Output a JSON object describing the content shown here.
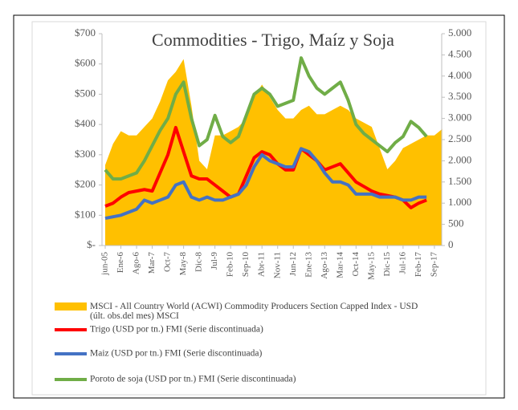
{
  "chart_data": {
    "type": "line",
    "title": "Commodities - Trigo, Maíz y Soja",
    "categories": [
      "jun-05",
      null,
      "Ene-6",
      null,
      "Ago-6",
      null,
      "Mar-7",
      null,
      "Oct-7",
      null,
      "May-8",
      null,
      "Dic-8",
      null,
      "Jul-9",
      null,
      "Feb-10",
      null,
      "Sep-10",
      null,
      "Abr-11",
      null,
      "Nov-11",
      null,
      "Jun-12",
      null,
      "Ene-13",
      null,
      "Ago-13",
      null,
      "Mar-14",
      null,
      "Oct-14",
      null,
      "May-15",
      null,
      "Dic-15",
      null,
      "Jul-16",
      null,
      "Feb-17",
      null,
      "Sep-17",
      null
    ],
    "series": [
      {
        "name": "MSCI - All Country World (ACWI) Commodity Producers Section Capped Index - USD (últ. obs.del mes) MSCI",
        "color": "#ffc000",
        "style": "area",
        "axis": "y2",
        "values": [
          1900,
          2400,
          2700,
          2600,
          2600,
          2800,
          3000,
          3400,
          3900,
          4100,
          4400,
          3300,
          2000,
          1800,
          2600,
          2600,
          2700,
          2800,
          3000,
          3500,
          3800,
          3500,
          3200,
          3000,
          3000,
          3200,
          3300,
          3100,
          3100,
          3200,
          3300,
          3200,
          3000,
          2900,
          2800,
          2300,
          1800,
          2000,
          2300,
          2400,
          2500,
          2600,
          2600,
          2750
        ]
      },
      {
        "name": "Trigo (USD por tn.) FMI (Serie discontinuada)",
        "color": "#ff0000",
        "values": [
          130,
          140,
          160,
          175,
          180,
          185,
          180,
          240,
          300,
          390,
          310,
          230,
          220,
          220,
          200,
          180,
          160,
          170,
          230,
          290,
          310,
          300,
          270,
          250,
          250,
          320,
          300,
          280,
          250,
          260,
          270,
          240,
          210,
          195,
          180,
          170,
          165,
          160,
          150,
          125,
          140,
          150,
          null,
          null
        ]
      },
      {
        "name": "Maiz (USD por tn.) FMI (Serie discontinuada)",
        "color": "#4472c4",
        "values": [
          90,
          95,
          100,
          110,
          120,
          150,
          140,
          150,
          160,
          200,
          210,
          160,
          150,
          160,
          150,
          150,
          160,
          170,
          200,
          260,
          300,
          280,
          270,
          260,
          260,
          320,
          310,
          280,
          240,
          210,
          210,
          200,
          170,
          170,
          170,
          160,
          160,
          160,
          150,
          150,
          160,
          160,
          null,
          null
        ]
      },
      {
        "name": "Poroto de soja (USD por tn.) FMI (Serie discontinuada)",
        "color": "#70ad47",
        "values": [
          250,
          220,
          220,
          230,
          240,
          280,
          330,
          380,
          420,
          500,
          540,
          420,
          330,
          350,
          430,
          360,
          340,
          360,
          430,
          500,
          520,
          500,
          460,
          470,
          480,
          620,
          560,
          520,
          500,
          520,
          540,
          480,
          400,
          370,
          350,
          330,
          310,
          340,
          360,
          410,
          390,
          360,
          null,
          null
        ]
      }
    ],
    "ylim": [
      0,
      700
    ],
    "yticks": [
      {
        "value": 0,
        "label": "$-"
      },
      {
        "value": 100,
        "label": "$100"
      },
      {
        "value": 200,
        "label": "$200"
      },
      {
        "value": 300,
        "label": "$300"
      },
      {
        "value": 400,
        "label": "$400"
      },
      {
        "value": 500,
        "label": "$500"
      },
      {
        "value": 600,
        "label": "$600"
      },
      {
        "value": 700,
        "label": "$700"
      }
    ],
    "y2lim": [
      0,
      5000
    ],
    "y2ticks": [
      0,
      {
        "value": 500,
        "label": "500"
      },
      {
        "value": 1000,
        "label": "1.000"
      },
      {
        "value": 1500,
        "label": "1.500"
      },
      {
        "value": 2000,
        "label": "2.000"
      },
      {
        "value": 2500,
        "label": "2.500"
      },
      {
        "value": 3000,
        "label": "3.000"
      },
      {
        "value": 3500,
        "label": "3.500"
      },
      {
        "value": 4000,
        "label": "4.000"
      },
      {
        "value": 4500,
        "label": "4.500"
      },
      {
        "value": 5000,
        "label": "5.000"
      }
    ],
    "legend": "bottom"
  }
}
